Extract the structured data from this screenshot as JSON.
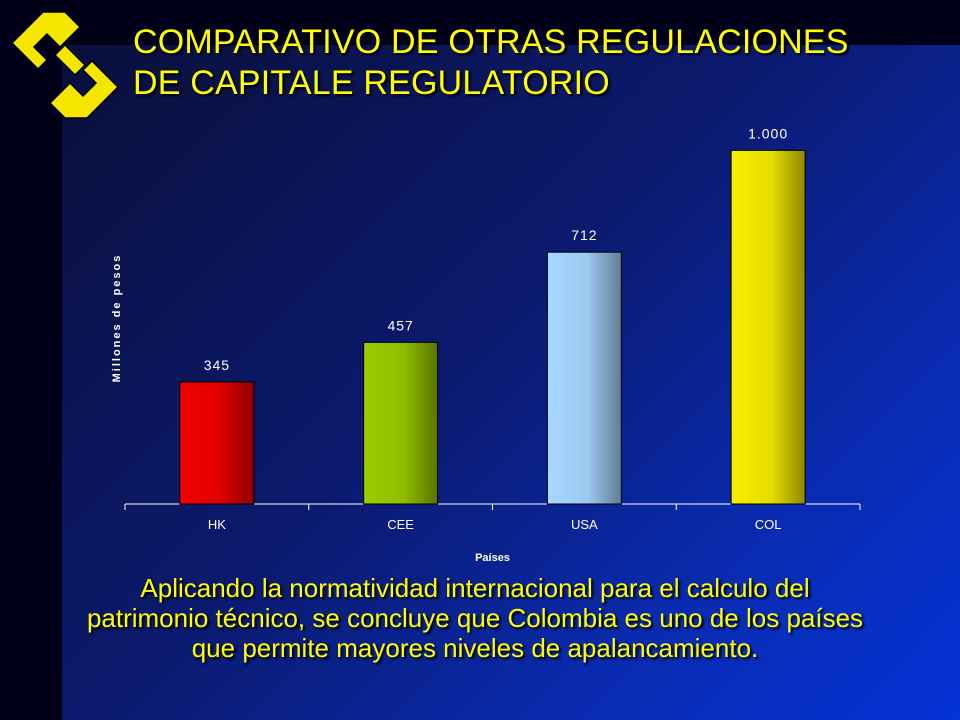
{
  "title": {
    "line1": "COMPARATIVO DE OTRAS REGULACIONES",
    "line2": "DE CAPITALE REGULATORIO"
  },
  "caption": "Aplicando la normatividad internacional para el calculo del patrimonio técnico, se concluye que Colombia es uno de los países que permite mayores niveles de apalancamiento.",
  "colors": {
    "title": "#ffff00",
    "logo": "#f5e600"
  },
  "chart_data": {
    "type": "bar",
    "categories": [
      "HK",
      "CEE",
      "USA",
      "COL"
    ],
    "values": [
      345,
      457,
      712,
      1000
    ],
    "value_labels": [
      "345",
      "457",
      "712",
      "1.000"
    ],
    "bar_colors": [
      "#e10000",
      "#8fbd00",
      "#9cc8f0",
      "#e6dc00"
    ],
    "xlabel": "Países",
    "ylabel": "Millones de pesos",
    "ylim": [
      0,
      1100
    ],
    "grid": false,
    "legend": "none"
  }
}
